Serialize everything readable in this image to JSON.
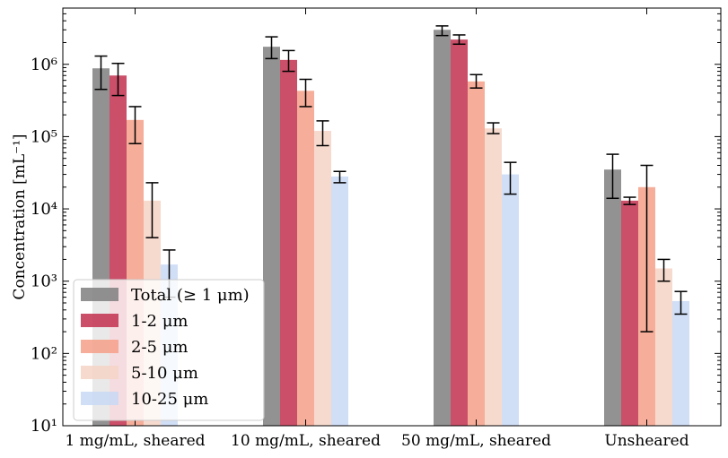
{
  "chart_data": {
    "type": "bar",
    "y_scale": "log",
    "ylim": [
      10,
      6000000
    ],
    "ylabel": "Concentration [mL⁻¹]",
    "xlabel": "",
    "title": "",
    "categories": [
      "1 mg/mL, sheared",
      "10 mg/mL, sheared",
      "50 mg/mL, sheared",
      "Unsheared"
    ],
    "y_ticks": [
      {
        "value": 10,
        "label": "10¹"
      },
      {
        "value": 100,
        "label": "10²"
      },
      {
        "value": 1000,
        "label": "10³"
      },
      {
        "value": 10000,
        "label": "10⁴"
      },
      {
        "value": 100000,
        "label": "10⁵"
      },
      {
        "value": 1000000,
        "label": "10⁶"
      }
    ],
    "series": [
      {
        "name": "Total (≥ 1 μm)",
        "color": "#7f7f7f",
        "values": [
          880000,
          1750000,
          3000000,
          35000
        ],
        "err_low": [
          450000,
          1200000,
          2500000,
          14000
        ],
        "err_high": [
          1300000,
          2400000,
          3400000,
          57000
        ]
      },
      {
        "name": "1-2 μm",
        "color": "#c2304f",
        "values": [
          700000,
          1150000,
          2200000,
          13000
        ],
        "err_low": [
          370000,
          800000,
          1900000,
          11500
        ],
        "err_high": [
          1030000,
          1550000,
          2550000,
          14500
        ]
      },
      {
        "name": "2-5 μm",
        "color": "#f4a088",
        "values": [
          170000,
          430000,
          580000,
          20000
        ],
        "err_low": [
          80000,
          260000,
          470000,
          200
        ],
        "err_high": [
          260000,
          620000,
          720000,
          40000
        ]
      },
      {
        "name": "5-10 μm",
        "color": "#f6d3c5",
        "values": [
          13000,
          120000,
          130000,
          1500
        ],
        "err_low": [
          4000,
          75000,
          110000,
          1000
        ],
        "err_high": [
          23000,
          165000,
          155000,
          2000
        ]
      },
      {
        "name": "10-25 μm",
        "color": "#c8d8f4",
        "values": [
          1700,
          28000,
          30000,
          530
        ],
        "err_low": [
          600,
          23000,
          16000,
          350
        ],
        "err_high": [
          2700,
          33000,
          44000,
          720
        ]
      }
    ],
    "legend_position": "lower-left",
    "grid": false
  }
}
